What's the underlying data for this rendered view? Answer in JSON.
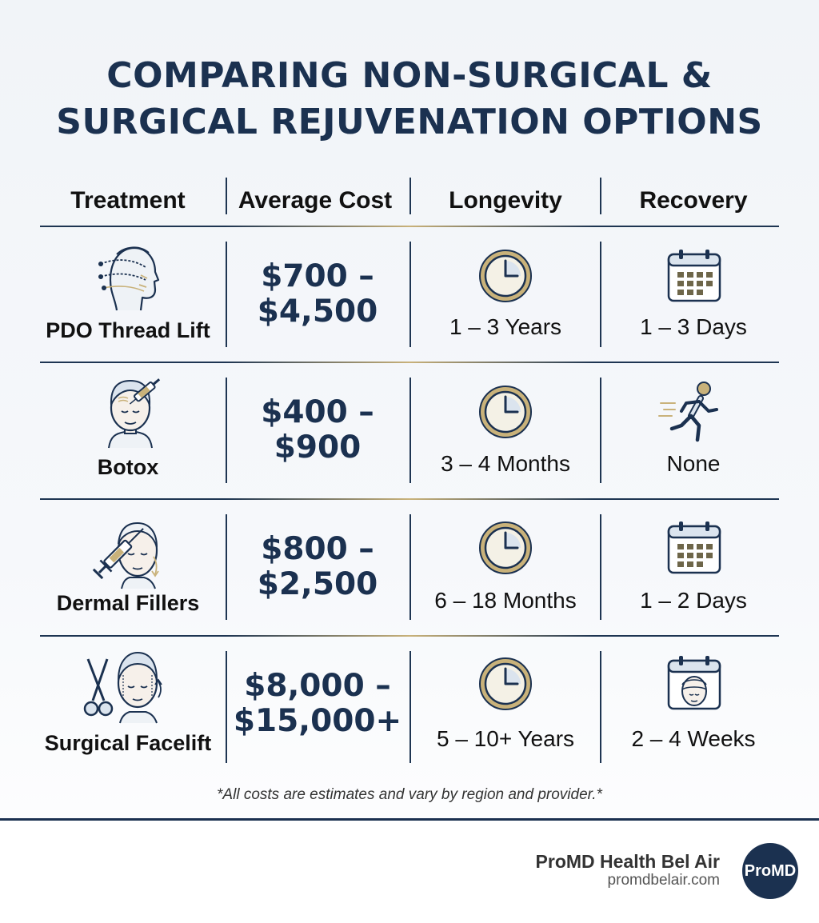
{
  "title": {
    "line1": "COMPARING NON-SURGICAL &",
    "line2": "SURGICAL REJUVENATION OPTIONS"
  },
  "headers": {
    "treatment": "Treatment",
    "cost": "Average Cost",
    "longevity": "Longevity",
    "recovery": "Recovery"
  },
  "rows": [
    {
      "treatment": "PDO Thread Lift",
      "cost_line1": "$700 –",
      "cost_line2": "$4,500",
      "longevity": "1 – 3 Years",
      "recovery": "1 – 3 Days",
      "treatment_icon": "thread-lift-face-icon",
      "recovery_icon": "calendar-icon"
    },
    {
      "treatment": "Botox",
      "cost_line1": "$400 –",
      "cost_line2": "$900",
      "longevity": "3 – 4 Months",
      "recovery": "None",
      "treatment_icon": "botox-injection-face-icon",
      "recovery_icon": "running-person-icon"
    },
    {
      "treatment": "Dermal Fillers",
      "cost_line1": "$800 –",
      "cost_line2": "$2,500",
      "longevity": "6 – 18 Months",
      "recovery": "1 – 2 Days",
      "treatment_icon": "filler-syringe-face-icon",
      "recovery_icon": "calendar-icon"
    },
    {
      "treatment": "Surgical Facelift",
      "cost_line1": "$8,000 –",
      "cost_line2": "$15,000+",
      "longevity": "5 – 10+ Years",
      "recovery": "2 – 4 Weeks",
      "treatment_icon": "scissors-face-icon",
      "recovery_icon": "calendar-bandaged-face-icon"
    }
  ],
  "footnote": "*All costs are estimates and vary by region and provider.*",
  "footer": {
    "brand_name": "ProMD Health Bel Air",
    "brand_url": "promdbelair.com",
    "logo_text": "ProMD"
  },
  "colors": {
    "navy": "#1b3150",
    "gold": "#c9b27a",
    "clock_face": "#f4f1e6",
    "icon_fill": "#dbe4ee"
  }
}
